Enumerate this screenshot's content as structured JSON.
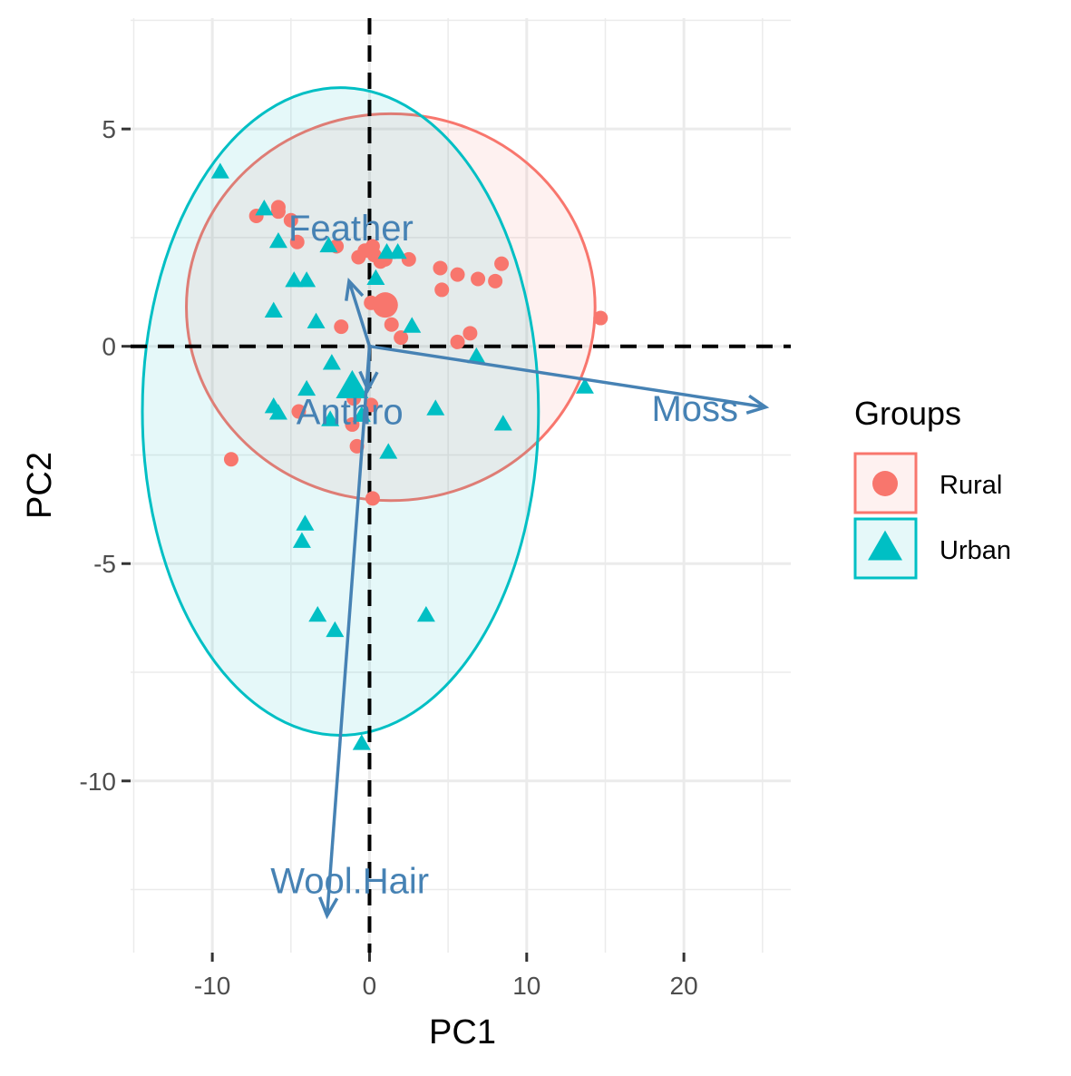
{
  "chart_data": {
    "type": "scatter",
    "title": "",
    "xlabel": "PC1",
    "ylabel": "PC2",
    "xlim": [
      -15.2,
      26.8
    ],
    "ylim": [
      -13.95,
      7.55
    ],
    "x_ticks": [
      -10,
      0,
      10,
      20
    ],
    "y_ticks": [
      5,
      0,
      -5,
      -10
    ],
    "x_minor": [
      -15,
      -5,
      5,
      15,
      25
    ],
    "y_minor": [
      7.5,
      2.5,
      -2.5,
      -7.5,
      -12.5
    ],
    "grid": true,
    "reference_lines": {
      "x": 0,
      "y": 0,
      "style": "dashed",
      "color": "#000000"
    },
    "legend": {
      "title": "Groups",
      "position": "right",
      "entries": [
        {
          "label": "Rural",
          "shape": "circle",
          "color": "#F8766D"
        },
        {
          "label": "Urban",
          "shape": "triangle",
          "color": "#00BFC4"
        }
      ]
    },
    "series": [
      {
        "name": "Rural",
        "shape": "circle",
        "color": "#F8766D",
        "centroid": [
          1.0,
          0.95
        ],
        "ellipse": {
          "cx": 1.35,
          "cy": 0.9,
          "rx": 13.0,
          "ry": 4.45
        },
        "points": [
          [
            -7.2,
            3.0
          ],
          [
            -5.8,
            3.2
          ],
          [
            -5.8,
            3.1
          ],
          [
            -5.0,
            2.9
          ],
          [
            -4.6,
            2.4
          ],
          [
            -2.1,
            2.3
          ],
          [
            -0.3,
            2.2
          ],
          [
            0.2,
            2.3
          ],
          [
            0.3,
            2.1
          ],
          [
            1.0,
            2.0
          ],
          [
            2.5,
            2.0
          ],
          [
            4.5,
            1.8
          ],
          [
            5.6,
            1.65
          ],
          [
            6.9,
            1.55
          ],
          [
            8.0,
            1.5
          ],
          [
            8.4,
            1.9
          ],
          [
            0.7,
            1.95
          ],
          [
            -0.7,
            2.05
          ],
          [
            4.6,
            1.3
          ],
          [
            0.1,
            1.0
          ],
          [
            2.0,
            0.2
          ],
          [
            5.6,
            0.1
          ],
          [
            6.4,
            0.3
          ],
          [
            14.7,
            0.65
          ],
          [
            -1.8,
            0.45
          ],
          [
            -4.5,
            -1.5
          ],
          [
            -1.0,
            -1.2
          ],
          [
            0.1,
            -1.35
          ],
          [
            -1.1,
            -1.8
          ],
          [
            -0.8,
            -2.3
          ],
          [
            0.2,
            -3.5
          ],
          [
            -8.8,
            -2.6
          ],
          [
            1.4,
            0.5
          ]
        ]
      },
      {
        "name": "Urban",
        "shape": "triangle",
        "color": "#00BFC4",
        "centroid": [
          -1.1,
          -0.95
        ],
        "ellipse": {
          "cx": -1.85,
          "cy": -1.5,
          "rx": 12.6,
          "ry": 7.45
        },
        "points": [
          [
            -9.5,
            4.0
          ],
          [
            -6.7,
            3.15
          ],
          [
            -5.8,
            2.4
          ],
          [
            -2.6,
            2.3
          ],
          [
            1.1,
            2.15
          ],
          [
            1.8,
            2.15
          ],
          [
            -4.8,
            1.5
          ],
          [
            -4.0,
            1.5
          ],
          [
            0.4,
            1.55
          ],
          [
            -6.1,
            0.8
          ],
          [
            -3.4,
            0.55
          ],
          [
            2.7,
            0.45
          ],
          [
            6.8,
            -0.25
          ],
          [
            13.7,
            -0.95
          ],
          [
            -2.4,
            -0.4
          ],
          [
            -4.0,
            -1.0
          ],
          [
            -6.1,
            -1.4
          ],
          [
            -5.8,
            -1.55
          ],
          [
            4.2,
            -1.45
          ],
          [
            8.5,
            -1.8
          ],
          [
            -2.5,
            -1.7
          ],
          [
            1.2,
            -2.45
          ],
          [
            -4.1,
            -4.1
          ],
          [
            -4.3,
            -4.5
          ],
          [
            -3.3,
            -6.2
          ],
          [
            3.6,
            -6.2
          ],
          [
            -2.2,
            -6.55
          ],
          [
            -0.5,
            -9.15
          ],
          [
            -0.5,
            -1.6
          ]
        ]
      }
    ],
    "loadings": [
      {
        "name": "Feather",
        "x": -1.3,
        "y": 1.5
      },
      {
        "name": "Anthro",
        "x": -0.1,
        "y": -1.0
      },
      {
        "name": "Moss",
        "x": 25.2,
        "y": -1.4
      },
      {
        "name": "Wool.Hair",
        "x": -2.7,
        "y": -13.1
      }
    ],
    "arrow_color": "#4682B4"
  }
}
